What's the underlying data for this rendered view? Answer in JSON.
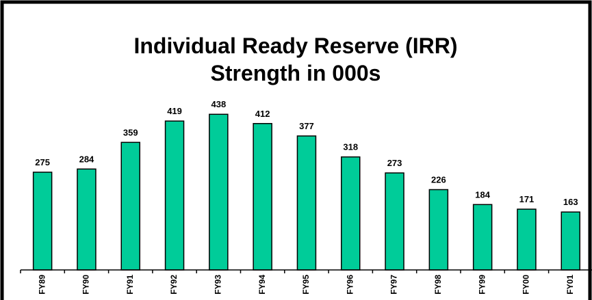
{
  "chart_data": {
    "type": "bar",
    "title_lines": [
      "Individual Ready Reserve (IRR)",
      "Strength in 000s"
    ],
    "categories": [
      "FY89",
      "FY90",
      "FY91",
      "FY92",
      "FY93",
      "FY94",
      "FY95",
      "FY96",
      "FY97",
      "FY98",
      "FY99",
      "FY00",
      "FY01"
    ],
    "values": [
      275,
      284,
      359,
      419,
      438,
      412,
      377,
      318,
      273,
      226,
      184,
      171,
      163
    ],
    "color": "#00cc99",
    "data_labels": true
  }
}
